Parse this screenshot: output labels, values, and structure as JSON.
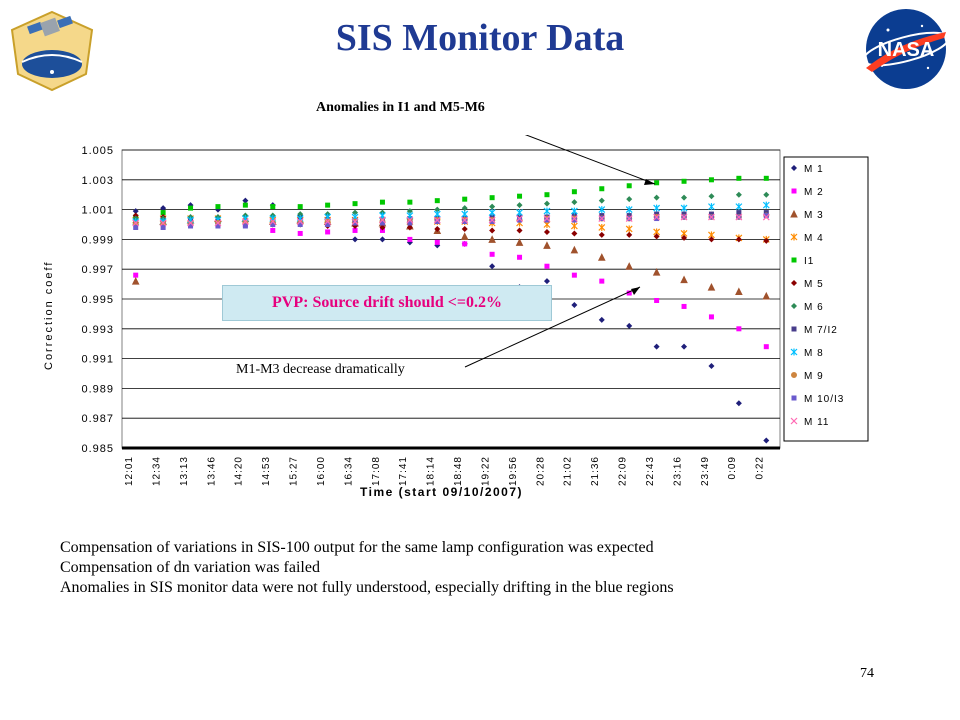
{
  "slide": {
    "title": "SIS Monitor Data",
    "page_number": "74",
    "logos": {
      "left": "npp-logo-icon",
      "right": "nasa-logo-icon"
    },
    "annotations": {
      "top": "Anomalies in I1 and M5-M6",
      "pvp": "PVP: Source drift should <=0.2%",
      "mid": "M1-M3 decrease dramatically"
    },
    "notes": [
      "Compensation of variations in SIS-100 output for the same lamp configuration was expected",
      "Compensation of dn variation was failed",
      "Anomalies in SIS monitor data were not fully understood, especially drifting in the blue regions"
    ]
  },
  "chart_data": {
    "type": "scatter",
    "xlabel": "Time (start 09/10/2007)",
    "ylabel": "Correction coeff",
    "ylim": [
      0.985,
      1.005
    ],
    "categories": [
      "12:01",
      "12:34",
      "13:13",
      "13:46",
      "14:20",
      "14:53",
      "15:27",
      "16:00",
      "16:34",
      "17:08",
      "17:41",
      "18:14",
      "18:48",
      "19:22",
      "19:56",
      "20:28",
      "21:02",
      "21:36",
      "22:09",
      "22:43",
      "23:16",
      "23:49",
      "0:09",
      "0:22"
    ],
    "yticks": [
      "1.005",
      "1.003",
      "1.001",
      "0.999",
      "0.997",
      "0.995",
      "0.993",
      "0.991",
      "0.989",
      "0.987",
      "0.985"
    ],
    "grid": true,
    "legend_position": "right",
    "series": [
      {
        "name": "M 1",
        "color": "#1f1f7a",
        "marker": "diamond",
        "values": [
          1.0009,
          1.0011,
          1.0013,
          1.001,
          1.0016,
          1.0013,
          1.0006,
          1.0004,
          0.999,
          0.999,
          0.9988,
          0.9986,
          0.9987,
          0.9972,
          0.9958,
          0.9962,
          0.9946,
          0.9936,
          0.9932,
          0.9918,
          0.9918,
          0.9905,
          0.988,
          0.9855
        ]
      },
      {
        "name": "M 2",
        "color": "#ff00ff",
        "marker": "square",
        "values": [
          0.9966,
          1.0003,
          1.0003,
          1.0002,
          1.0,
          0.9996,
          0.9994,
          0.9995,
          0.9996,
          0.9996,
          0.999,
          0.9988,
          0.9987,
          0.998,
          0.9978,
          0.9972,
          0.9966,
          0.9962,
          0.9954,
          0.9949,
          0.9945,
          0.9938,
          0.993,
          0.9918
        ]
      },
      {
        "name": "M 3",
        "color": "#a0522d",
        "marker": "triangle",
        "values": [
          0.9962,
          1.0002,
          1.0003,
          1.0004,
          1.0004,
          1.0002,
          1.0003,
          1.0002,
          1.0001,
          1.0001,
          0.9999,
          0.9996,
          0.9992,
          0.999,
          0.9988,
          0.9986,
          0.9983,
          0.9978,
          0.9972,
          0.9968,
          0.9963,
          0.9958,
          0.9955,
          0.9952
        ]
      },
      {
        "name": "M 4",
        "color": "#ff8c00",
        "marker": "star",
        "values": [
          1.0003,
          1.0004,
          1.0004,
          1.0004,
          1.0004,
          1.0003,
          1.0003,
          1.0003,
          1.0003,
          1.0003,
          1.0002,
          1.0002,
          1.0002,
          1.0001,
          1.0001,
          1.0,
          0.9999,
          0.9998,
          0.9997,
          0.9995,
          0.9994,
          0.9993,
          0.9991,
          0.999
        ]
      },
      {
        "name": "I1",
        "color": "#00c800",
        "marker": "square",
        "values": [
          1.0005,
          1.0008,
          1.0011,
          1.0012,
          1.0013,
          1.0012,
          1.0012,
          1.0013,
          1.0014,
          1.0015,
          1.0015,
          1.0016,
          1.0017,
          1.0018,
          1.0019,
          1.002,
          1.0022,
          1.0024,
          1.0026,
          1.0028,
          1.0029,
          1.003,
          1.0031,
          1.0031
        ]
      },
      {
        "name": "M 5",
        "color": "#8b0000",
        "marker": "diamond",
        "values": [
          1.0006,
          1.0005,
          1.0004,
          1.0002,
          1.0001,
          1.0,
          1.0,
          0.9999,
          0.9999,
          0.9998,
          0.9998,
          0.9997,
          0.9997,
          0.9996,
          0.9996,
          0.9995,
          0.9994,
          0.9993,
          0.9993,
          0.9992,
          0.9991,
          0.999,
          0.999,
          0.9989
        ]
      },
      {
        "name": "M 6",
        "color": "#2e8b57",
        "marker": "diamond",
        "values": [
          1.0004,
          1.0004,
          1.0005,
          1.0005,
          1.0006,
          1.0006,
          1.0007,
          1.0007,
          1.0008,
          1.0008,
          1.0009,
          1.001,
          1.0011,
          1.0012,
          1.0013,
          1.0014,
          1.0015,
          1.0016,
          1.0017,
          1.0018,
          1.0018,
          1.0019,
          1.002,
          1.002
        ]
      },
      {
        "name": "M 7/I2",
        "color": "#483d8b",
        "marker": "square",
        "values": [
          1.0001,
          1.0001,
          1.0002,
          1.0002,
          1.0002,
          1.0002,
          1.0003,
          1.0003,
          1.0003,
          1.0003,
          1.0004,
          1.0004,
          1.0004,
          1.0005,
          1.0005,
          1.0005,
          1.0006,
          1.0006,
          1.0006,
          1.0007,
          1.0007,
          1.0007,
          1.0008,
          1.0008
        ]
      },
      {
        "name": "M 8",
        "color": "#00bfff",
        "marker": "star",
        "values": [
          1.0002,
          1.0002,
          1.0003,
          1.0003,
          1.0004,
          1.0004,
          1.0004,
          1.0005,
          1.0005,
          1.0006,
          1.0006,
          1.0007,
          1.0007,
          1.0008,
          1.0008,
          1.0009,
          1.0009,
          1.001,
          1.001,
          1.0011,
          1.0011,
          1.0012,
          1.0012,
          1.0013
        ]
      },
      {
        "name": "M 9",
        "color": "#cd853f",
        "marker": "circle",
        "values": [
          1.0,
          1.0,
          1.0,
          1.0001,
          1.0001,
          1.0001,
          1.0001,
          1.0002,
          1.0002,
          1.0002,
          1.0002,
          1.0003,
          1.0003,
          1.0003,
          1.0003,
          1.0004,
          1.0004,
          1.0004,
          1.0004,
          1.0005,
          1.0005,
          1.0005,
          1.0005,
          1.0006
        ]
      },
      {
        "name": "M 10/I3",
        "color": "#6a5acd",
        "marker": "square",
        "values": [
          0.9998,
          0.9998,
          0.9999,
          0.9999,
          0.9999,
          1.0,
          1.0,
          1.0,
          1.0001,
          1.0001,
          1.0001,
          1.0002,
          1.0002,
          1.0002,
          1.0003,
          1.0003,
          1.0003,
          1.0004,
          1.0004,
          1.0004,
          1.0005,
          1.0005,
          1.0005,
          1.0006
        ]
      },
      {
        "name": "M 11",
        "color": "#ff69b4",
        "marker": "cross",
        "values": [
          1.0001,
          1.0001,
          1.0001,
          1.0001,
          1.0002,
          1.0002,
          1.0002,
          1.0002,
          1.0002,
          1.0003,
          1.0003,
          1.0003,
          1.0003,
          1.0003,
          1.0004,
          1.0004,
          1.0004,
          1.0004,
          1.0004,
          1.0005,
          1.0005,
          1.0005,
          1.0005,
          1.0005
        ]
      }
    ]
  }
}
